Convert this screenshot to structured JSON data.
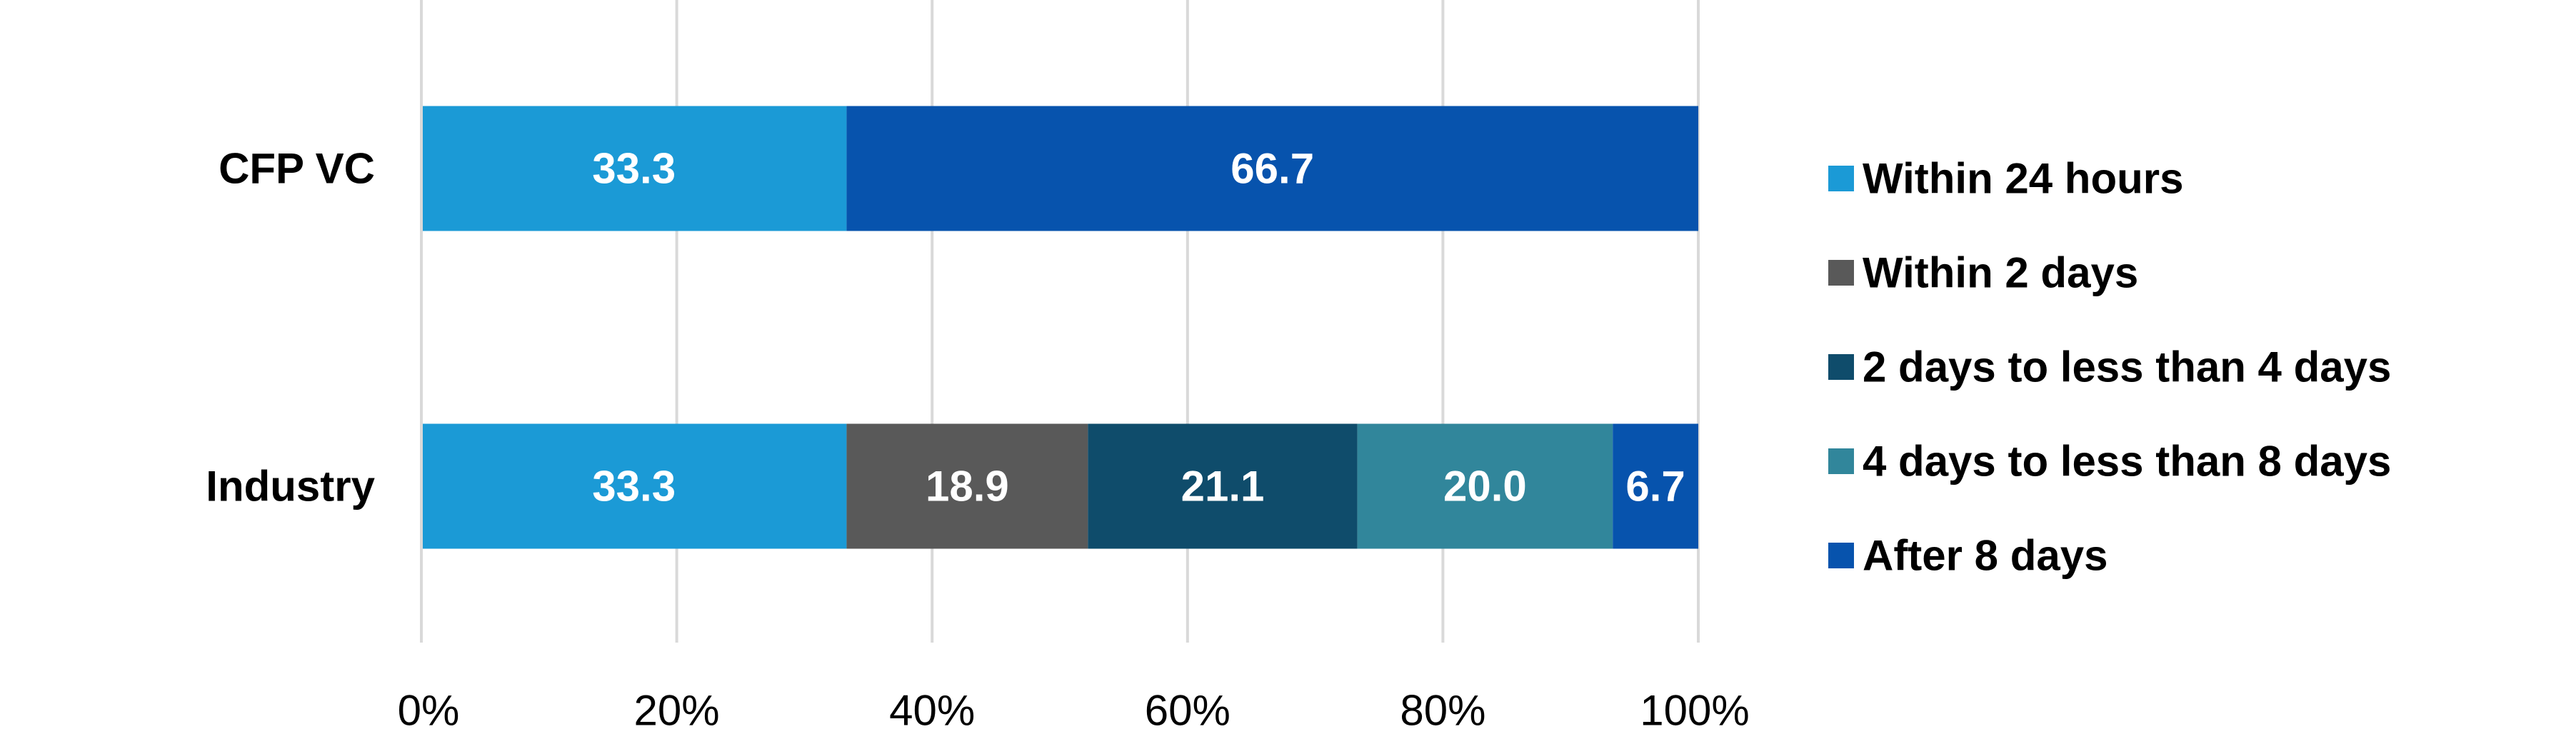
{
  "chart_data": {
    "type": "bar",
    "orientation": "horizontal",
    "stacked": true,
    "categories": [
      "CFP VC",
      "Industry"
    ],
    "series": [
      {
        "name": "Within 24 hours",
        "color": "#1b9ad6",
        "values": [
          33.3,
          33.3
        ]
      },
      {
        "name": "Within 2 days",
        "color": "#595959",
        "values": [
          0,
          18.9
        ]
      },
      {
        "name": "2 days to less than 4 days",
        "color": "#0f4c6b",
        "values": [
          0,
          21.1
        ]
      },
      {
        "name": "4 days to less than 8 days",
        "color": "#31869b",
        "values": [
          0,
          20.0
        ]
      },
      {
        "name": "After 8 days",
        "color": "#0753ad",
        "values": [
          66.7,
          6.7
        ]
      }
    ],
    "data_labels": [
      [
        "33.3",
        null,
        null,
        null,
        "66.7"
      ],
      [
        "33.3",
        "18.9",
        "21.1",
        "20.0",
        "6.7"
      ]
    ],
    "xlim": [
      0,
      100
    ],
    "x_ticks": [
      "0%",
      "20%",
      "40%",
      "60%",
      "80%",
      "100%"
    ],
    "grid": true,
    "legend_position": "right"
  }
}
